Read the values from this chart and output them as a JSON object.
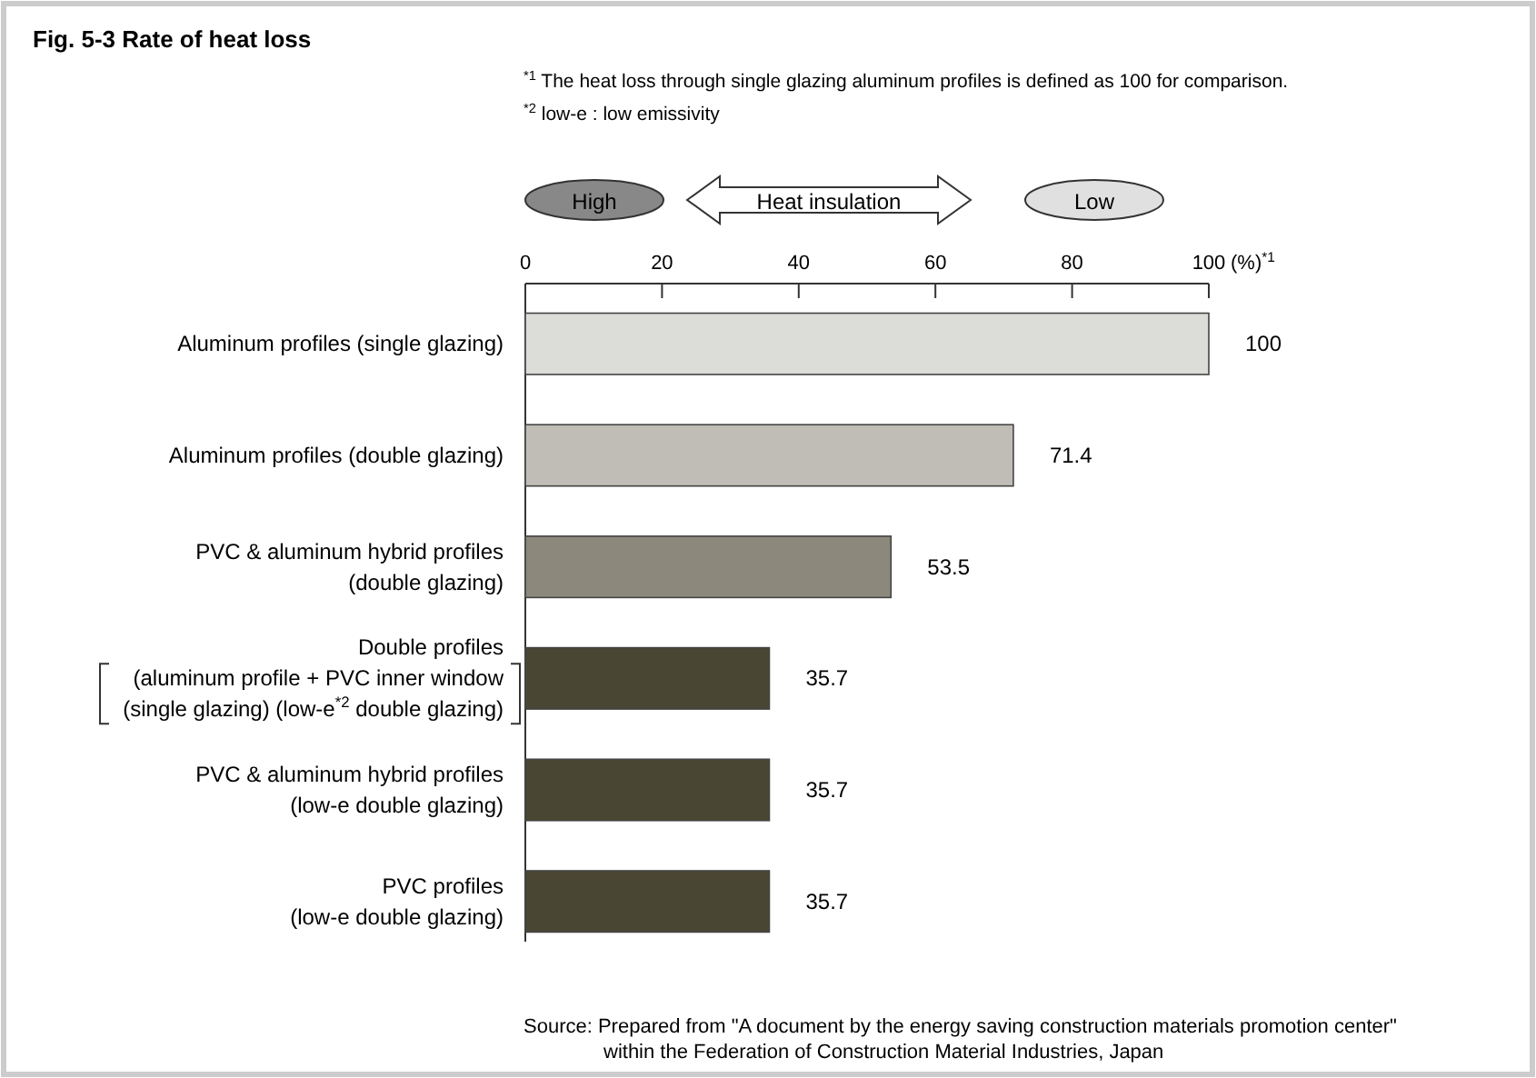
{
  "chart_data": {
    "type": "bar",
    "orientation": "horizontal",
    "title": "Fig. 5-3  Rate of heat loss",
    "categories": [
      "Aluminum profiles (single glazing)",
      "Aluminum profiles (double glazing)",
      "PVC & aluminum hybrid profiles\n(double glazing)",
      "Double profiles\n(aluminum profile +  PVC inner window\n(single glazing) (low-e$^{*2}$ double glazing)",
      "PVC & aluminum hybrid profiles\n(low-e double glazing)",
      "PVC profiles\n(low-e double glazing)"
    ],
    "values": [
      100,
      71.4,
      53.5,
      35.7,
      35.7,
      35.7
    ],
    "colors": [
      "#dcdcd8",
      "#c0bdb6",
      "#8c887c",
      "#4a4634",
      "#4a4634",
      "#4a4634"
    ],
    "xlim": [
      0,
      100
    ],
    "xticks": [
      0,
      20,
      40,
      60,
      80,
      100
    ],
    "xlabel": "(%)$^{*1}$",
    "data_labels": true,
    "annotations": [
      "$^{*1}$ The heat loss through single glazing aluminum profiles is defined as 100 for comparison.",
      "$^{*2}$ low-e : low emissivity",
      "High",
      "Heat insulation",
      "Low",
      "Source: Prepared from \"A document by the energy saving construction materials promotion center\"\nwithin the Federation of Construction Material Industries, Japan"
    ]
  }
}
